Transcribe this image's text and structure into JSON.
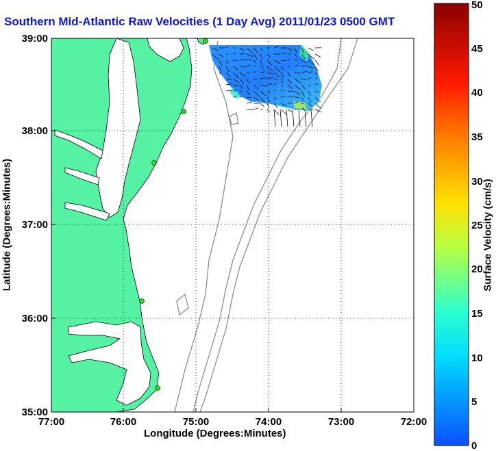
{
  "title": "Southern Mid-Atlantic Raw Velocities (1 Day Avg) 2011/01/23 0500 GMT",
  "x_axis": {
    "label": "Longitude (Degrees:Minutes)",
    "ticks": [
      "77:00",
      "76:00",
      "75:00",
      "74:00",
      "73:00",
      "72:00"
    ]
  },
  "y_axis": {
    "label": "Latitude (Degrees:Minutes)",
    "ticks": [
      "39:00",
      "38:00",
      "37:00",
      "36:00",
      "35:00"
    ]
  },
  "colorbar": {
    "label": "Surface Velocity (cm/s)",
    "min": 0,
    "max": 50,
    "ticks": [
      "0",
      "5",
      "10",
      "15",
      "20",
      "25",
      "30",
      "35",
      "40",
      "45",
      "50"
    ]
  },
  "colors": {
    "land": "#55f2a4",
    "ocean": "#ffffff",
    "bathymetry": "#8c8c8c",
    "title": "#0a14e6",
    "station": "#22dd22"
  },
  "stations": [
    "station-1",
    "station-2",
    "station-3",
    "station-4",
    "station-5"
  ],
  "map": {
    "lon_range": [
      -77,
      -72
    ],
    "lat_range": [
      35,
      39
    ],
    "gridlines": true
  }
}
